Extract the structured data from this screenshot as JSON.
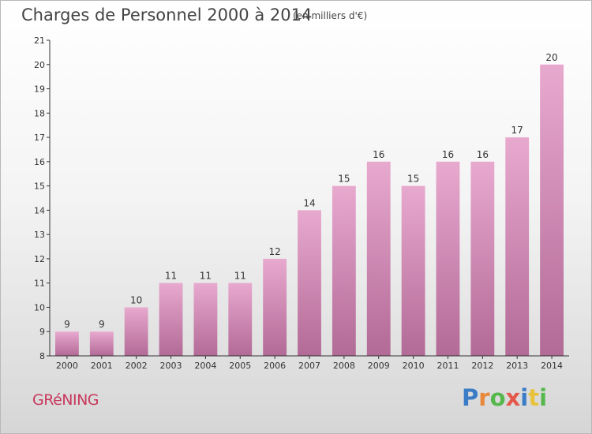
{
  "header": {
    "title": "Charges de Personnel 2000 à 2014",
    "subtitle": "(en milliers d'€)"
  },
  "footer": {
    "commune": "GRéNING",
    "logo_letters": [
      "P",
      "r",
      "o",
      "x",
      "i",
      "t",
      "i"
    ],
    "logo_colors": [
      "#3a7cc6",
      "#e8893a",
      "#56b74c",
      "#e4584a",
      "#3a7cc6",
      "#e8c23a",
      "#56b74c"
    ]
  },
  "colors": {
    "bar_top": "#e8a9cf",
    "bar_bottom": "#b26a96",
    "axis": "#333333",
    "grid": "#cccccc"
  },
  "chart_data": {
    "type": "bar",
    "categories": [
      "2000",
      "2001",
      "2002",
      "2003",
      "2004",
      "2005",
      "2006",
      "2007",
      "2008",
      "2009",
      "2010",
      "2011",
      "2012",
      "2013",
      "2014"
    ],
    "values": [
      9,
      9,
      10,
      11,
      11,
      11,
      12,
      14,
      15,
      16,
      15,
      16,
      16,
      17,
      20
    ],
    "ylim": [
      8,
      21
    ],
    "yticks": [
      8,
      9,
      10,
      11,
      12,
      13,
      14,
      15,
      16,
      17,
      18,
      19,
      20,
      21
    ],
    "grid": false
  }
}
